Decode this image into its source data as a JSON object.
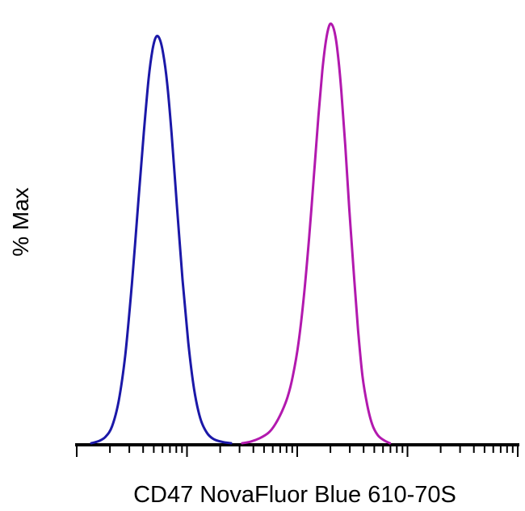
{
  "chart_data": {
    "type": "line",
    "subtype": "flow-cytometry-histogram-overlay",
    "title": "",
    "xlabel": "CD47 NovaFluor Blue 610-70S",
    "ylabel": "% Max",
    "ylim": [
      0,
      100
    ],
    "x_axis_range_normalized": [
      0,
      1
    ],
    "x_scale": "log",
    "grid": false,
    "legend": "none",
    "axis_color": "#000000",
    "background_color": "#ffffff",
    "series": [
      {
        "name": "left-peak-blue",
        "color": "#1b18a8",
        "stroke_width": 3,
        "peak_x_normalized": 0.18,
        "peak_y_percent": 97,
        "points": [
          [
            0.033,
            0
          ],
          [
            0.05,
            0.5
          ],
          [
            0.065,
            1.5
          ],
          [
            0.08,
            4
          ],
          [
            0.095,
            10
          ],
          [
            0.11,
            21
          ],
          [
            0.125,
            38
          ],
          [
            0.14,
            58
          ],
          [
            0.152,
            74
          ],
          [
            0.163,
            87
          ],
          [
            0.172,
            94
          ],
          [
            0.18,
            97
          ],
          [
            0.188,
            96.5
          ],
          [
            0.196,
            93
          ],
          [
            0.205,
            86
          ],
          [
            0.215,
            74
          ],
          [
            0.227,
            57
          ],
          [
            0.24,
            39
          ],
          [
            0.253,
            24
          ],
          [
            0.266,
            13
          ],
          [
            0.28,
            6
          ],
          [
            0.295,
            2.5
          ],
          [
            0.31,
            1
          ],
          [
            0.33,
            0.3
          ],
          [
            0.35,
            0
          ]
        ]
      },
      {
        "name": "right-peak-magenta",
        "color": "#b219ae",
        "stroke_width": 3,
        "peak_x_normalized": 0.578,
        "peak_y_percent": 100,
        "points": [
          [
            0.375,
            0
          ],
          [
            0.395,
            0.4
          ],
          [
            0.415,
            1.2
          ],
          [
            0.435,
            2.5
          ],
          [
            0.45,
            4.5
          ],
          [
            0.465,
            7.5
          ],
          [
            0.478,
            11
          ],
          [
            0.49,
            16
          ],
          [
            0.503,
            24
          ],
          [
            0.515,
            35
          ],
          [
            0.527,
            49
          ],
          [
            0.538,
            64
          ],
          [
            0.548,
            78
          ],
          [
            0.557,
            89
          ],
          [
            0.565,
            96
          ],
          [
            0.572,
            99.5
          ],
          [
            0.578,
            100
          ],
          [
            0.585,
            98
          ],
          [
            0.592,
            93
          ],
          [
            0.6,
            84
          ],
          [
            0.609,
            71
          ],
          [
            0.618,
            56
          ],
          [
            0.628,
            41
          ],
          [
            0.638,
            27
          ],
          [
            0.648,
            16
          ],
          [
            0.659,
            9
          ],
          [
            0.67,
            4.5
          ],
          [
            0.682,
            2
          ],
          [
            0.695,
            0.8
          ],
          [
            0.71,
            0
          ]
        ]
      }
    ],
    "x_axis_ticks": {
      "major_positions": [
        0,
        0.25,
        0.5,
        0.75,
        1.0
      ],
      "minor_positions": [
        0.0753,
        0.1193,
        0.1505,
        0.1747,
        0.1945,
        0.2113,
        0.2258,
        0.2386,
        0.3253,
        0.3693,
        0.4005,
        0.4247,
        0.4445,
        0.4613,
        0.4758,
        0.4886,
        0.5753,
        0.6193,
        0.6505,
        0.6747,
        0.6945,
        0.7113,
        0.7258,
        0.7386,
        0.8253,
        0.8693,
        0.9005,
        0.9247,
        0.9445,
        0.9613,
        0.9758,
        0.9886
      ]
    }
  }
}
